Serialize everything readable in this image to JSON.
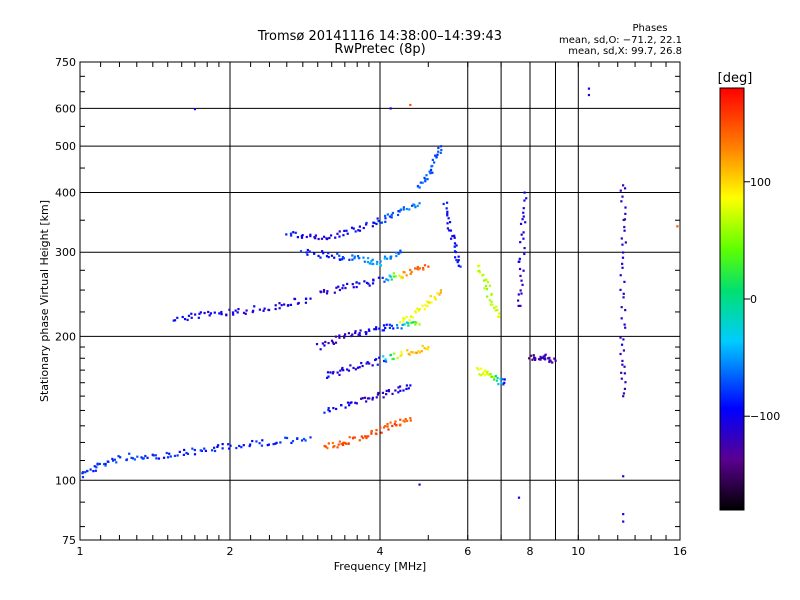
{
  "chart_data": {
    "type": "scatter",
    "title": "Tromsø 20141116 14:38:00–14:39:43",
    "subtitle": "RwPretec (8p)",
    "xlabel": "Frequency [MHz]",
    "ylabel": "Stationary phase Virtual Height [km]",
    "x_scale": "log",
    "y_scale": "log",
    "xlim": [
      1,
      16
    ],
    "ylim": [
      75,
      750
    ],
    "x_ticks": [
      1,
      2,
      4,
      6,
      8,
      10,
      16
    ],
    "x_tick_labels": [
      "1",
      "2",
      "4",
      "6",
      "8",
      "10",
      "16"
    ],
    "y_ticks": [
      75,
      100,
      200,
      300,
      400,
      500,
      600,
      750
    ],
    "y_tick_labels": [
      "75",
      "100",
      "200",
      "300",
      "400",
      "500",
      "600",
      "750"
    ],
    "grid": true,
    "phase_legend": {
      "title": "Phases",
      "line_o": "mean, sd,O: −71.2, 22.1",
      "line_x": "mean, sd,X: 99.7, 26.8"
    },
    "colorbar": {
      "label": "[deg]",
      "range": [
        -180,
        180
      ],
      "ticks": [
        100,
        0,
        -100
      ],
      "tick_labels": [
        "100",
        "0",
        "−100"
      ]
    },
    "traces": [
      {
        "points": [
          [
            1.0,
            102,
            -90
          ],
          [
            1.1,
            108,
            -80
          ],
          [
            1.25,
            112,
            -75
          ],
          [
            1.45,
            112,
            -85
          ],
          [
            1.7,
            115,
            -85
          ],
          [
            2.0,
            118,
            -90
          ],
          [
            2.4,
            120,
            -85
          ],
          [
            2.9,
            123,
            -80
          ]
        ]
      },
      {
        "points": [
          [
            3.1,
            117,
            140
          ],
          [
            3.4,
            120,
            150
          ],
          [
            3.8,
            125,
            155
          ],
          [
            4.2,
            130,
            150
          ],
          [
            4.6,
            135,
            140
          ]
        ]
      },
      {
        "points": [
          [
            1.55,
            218,
            -95
          ],
          [
            1.8,
            222,
            -100
          ],
          [
            2.1,
            226,
            -110
          ],
          [
            2.5,
            232,
            -110
          ],
          [
            2.9,
            240,
            -100
          ]
        ]
      },
      {
        "points": [
          [
            2.8,
            300,
            -80
          ],
          [
            3.2,
            295,
            -90
          ],
          [
            3.6,
            290,
            -60
          ],
          [
            4.0,
            285,
            -40
          ],
          [
            4.4,
            300,
            -70
          ]
        ]
      },
      {
        "points": [
          [
            2.6,
            330,
            -90
          ],
          [
            3.0,
            320,
            -110
          ],
          [
            3.4,
            330,
            -100
          ],
          [
            3.9,
            345,
            -80
          ],
          [
            4.3,
            360,
            -70
          ],
          [
            4.8,
            380,
            -60
          ]
        ]
      },
      {
        "points": [
          [
            3.0,
            245,
            -120
          ],
          [
            3.5,
            255,
            -100
          ],
          [
            4.0,
            262,
            -90
          ],
          [
            4.5,
            270,
            130
          ],
          [
            5.0,
            280,
            150
          ]
        ]
      },
      {
        "points": [
          [
            3.0,
            190,
            -110
          ],
          [
            3.4,
            200,
            -120
          ],
          [
            3.8,
            205,
            -100
          ],
          [
            4.3,
            210,
            -80
          ],
          [
            4.8,
            212,
            60
          ]
        ]
      },
      {
        "points": [
          [
            3.1,
            165,
            -100
          ],
          [
            3.5,
            172,
            -110
          ],
          [
            4.0,
            178,
            -90
          ],
          [
            4.5,
            185,
            120
          ],
          [
            5.0,
            190,
            100
          ]
        ]
      },
      {
        "points": [
          [
            3.1,
            140,
            -90
          ],
          [
            3.6,
            146,
            -110
          ],
          [
            4.1,
            152,
            -120
          ],
          [
            4.6,
            158,
            -100
          ]
        ]
      },
      {
        "points": [
          [
            4.4,
            215,
            90
          ],
          [
            4.9,
            230,
            80
          ],
          [
            5.3,
            250,
            110
          ]
        ]
      },
      {
        "points": [
          [
            4.8,
            410,
            -60
          ],
          [
            5.1,
            450,
            -70
          ],
          [
            5.3,
            500,
            -80
          ]
        ]
      },
      {
        "points": [
          [
            5.4,
            380,
            -90
          ],
          [
            5.6,
            320,
            -100
          ],
          [
            5.8,
            280,
            -80
          ]
        ]
      },
      {
        "points": [
          [
            6.3,
            280,
            70
          ],
          [
            6.6,
            250,
            60
          ],
          [
            6.9,
            220,
            80
          ]
        ]
      },
      {
        "points": [
          [
            6.3,
            170,
            80
          ],
          [
            6.7,
            165,
            70
          ],
          [
            7.1,
            160,
            -100
          ]
        ]
      },
      {
        "points": [
          [
            7.6,
            230,
            -120
          ],
          [
            7.7,
            300,
            -110
          ],
          [
            7.8,
            400,
            -100
          ]
        ]
      },
      {
        "points": [
          [
            8.0,
            180,
            -140
          ],
          [
            8.5,
            182,
            -120
          ],
          [
            9.0,
            178,
            -130
          ]
        ]
      },
      {
        "points": [
          [
            12.3,
            420,
            -120
          ],
          [
            12.3,
            300,
            -110
          ],
          [
            12.3,
            200,
            -110
          ],
          [
            12.3,
            150,
            -120
          ]
        ]
      }
    ],
    "isolated_points": [
      {
        "x": 1.7,
        "y": 598,
        "phase": -110
      },
      {
        "x": 10.5,
        "y": 660,
        "phase": -110
      },
      {
        "x": 10.5,
        "y": 640,
        "phase": -120
      },
      {
        "x": 12.3,
        "y": 102,
        "phase": -110
      },
      {
        "x": 12.3,
        "y": 85,
        "phase": -110
      },
      {
        "x": 12.3,
        "y": 82,
        "phase": -110
      },
      {
        "x": 15.8,
        "y": 340,
        "phase": 150
      },
      {
        "x": 4.2,
        "y": 600,
        "phase": -100
      },
      {
        "x": 4.6,
        "y": 610,
        "phase": 150
      },
      {
        "x": 7.6,
        "y": 92,
        "phase": -110
      },
      {
        "x": 4.8,
        "y": 98,
        "phase": -110
      }
    ]
  }
}
